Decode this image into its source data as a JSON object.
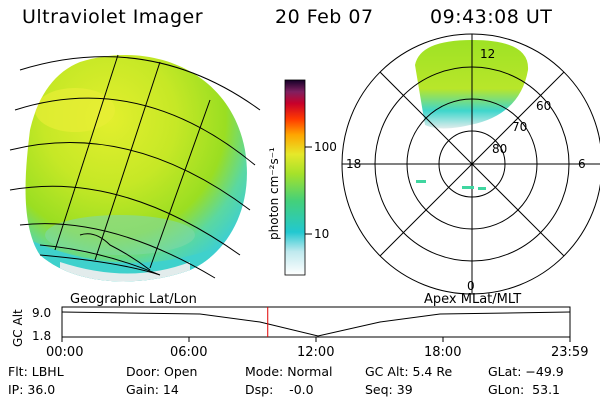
{
  "header": {
    "app_title": "Ultraviolet Imager",
    "date": "20 Feb 07",
    "time": "09:43:08 UT"
  },
  "colorbar": {
    "label": "photon cm⁻²s⁻¹",
    "ticks": [
      "100",
      "10"
    ],
    "scale": "log"
  },
  "panels": {
    "left_label": "Geographic Lat/Lon",
    "right_label": "Apex MLat/MLT"
  },
  "polar": {
    "mlt_labels": {
      "top": "12",
      "left": "18",
      "right": "6",
      "bottom": "0"
    },
    "lat_labels": [
      "60",
      "70",
      "80"
    ]
  },
  "altitude_plot": {
    "axis_label": "GC Alt",
    "y_ticks": [
      "9.0",
      "1.8"
    ],
    "x_ticks": [
      "00:00",
      "06:00",
      "12:00",
      "18:00",
      "23:59"
    ],
    "current_time_fraction": 0.405,
    "marker_color": "#e00000"
  },
  "status": {
    "flt": "Flt: LBHL",
    "ip": "IP: 36.0",
    "door": "Door: Open",
    "gain": "Gain: 14",
    "mode": "Mode: Normal",
    "dsp": "Dsp:    -0.0",
    "gc_alt": "GC Alt: 5.4 Re",
    "seq": "Seq: 39",
    "glat": "GLat: −49.9",
    "glon": "GLon:  53.1"
  },
  "colors": {
    "aurora_green": "#9be21a",
    "aurora_yellow": "#d6ee2a",
    "cyan": "#3fd6d0",
    "pale": "#e2ecec"
  }
}
